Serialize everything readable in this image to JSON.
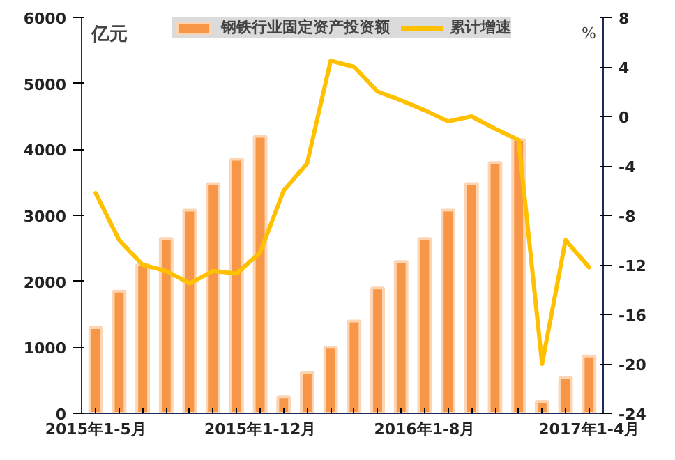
{
  "chart_data": {
    "type": "bar",
    "ylabel": "亿元",
    "y2label": "%",
    "categories": [
      "2015年1-5月",
      null,
      null,
      null,
      null,
      null,
      null,
      "2015年1-12月",
      null,
      null,
      null,
      null,
      null,
      null,
      "2016年1-8月",
      null,
      null,
      null,
      null,
      null,
      null,
      "2017年1-4月"
    ],
    "series": [
      {
        "name": "钢铁行业固定资产投资额",
        "color": "#f79646",
        "values": [
          1300,
          1850,
          2250,
          2650,
          3080,
          3480,
          3850,
          4200,
          250,
          620,
          1000,
          1400,
          1900,
          2300,
          2650,
          3080,
          3480,
          3800,
          4150,
          180,
          540,
          870
        ]
      },
      {
        "name": "累计增速",
        "type": "line",
        "axis": "y2",
        "color": "#ffc000",
        "values": [
          -6.2,
          -10,
          -12,
          -12.5,
          -13.5,
          -12.5,
          -12.7,
          -11,
          -6,
          -3.8,
          4.5,
          4,
          2,
          1.3,
          0.5,
          -0.4,
          0,
          -1,
          -1.9,
          -20,
          -10,
          -12.2
        ]
      }
    ],
    "ylim": [
      0,
      6000
    ],
    "yticks": [
      0,
      1000,
      2000,
      3000,
      4000,
      5000,
      6000
    ],
    "y2lim": [
      -24,
      8
    ],
    "y2ticks": [
      -24,
      -20,
      -16,
      -12,
      -8,
      -4,
      0,
      4,
      8
    ],
    "legend": "top",
    "grid": false
  }
}
